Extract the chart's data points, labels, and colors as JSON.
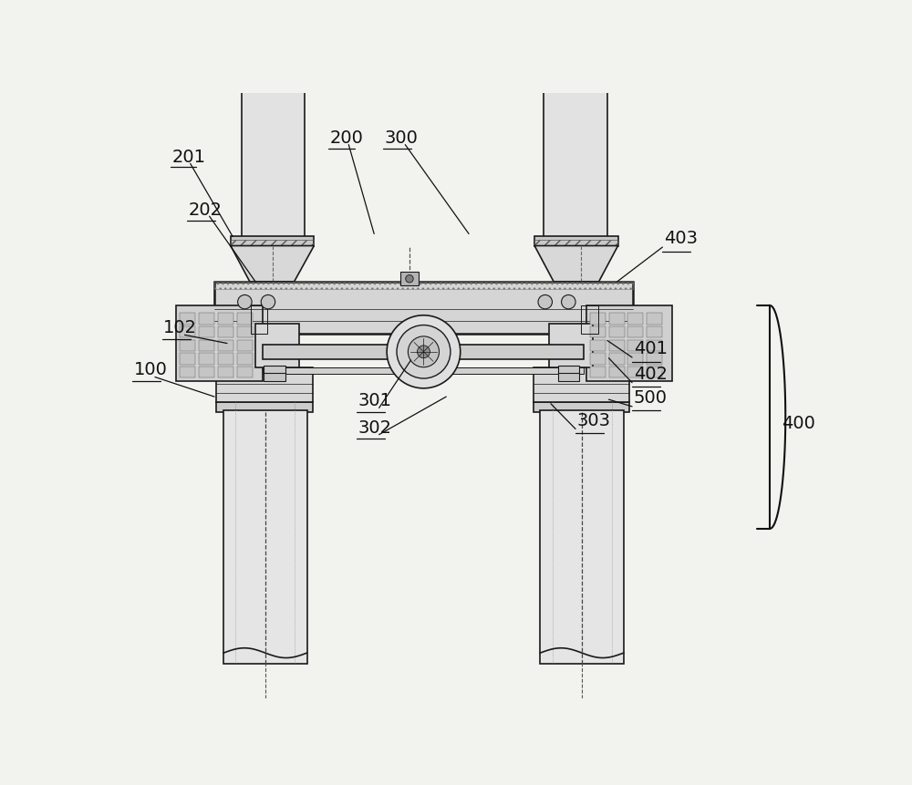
{
  "bg_color": "#f2f2ee",
  "line_color": "#1a1a1a",
  "gray1": "#e5e5e5",
  "gray2": "#d0d0d0",
  "gray3": "#c0c0c0",
  "gray4": "#b0b0b0",
  "label_fs": 14,
  "label_color": "#111111",
  "lw1": 0.7,
  "lw2": 1.2,
  "lw3": 1.8
}
